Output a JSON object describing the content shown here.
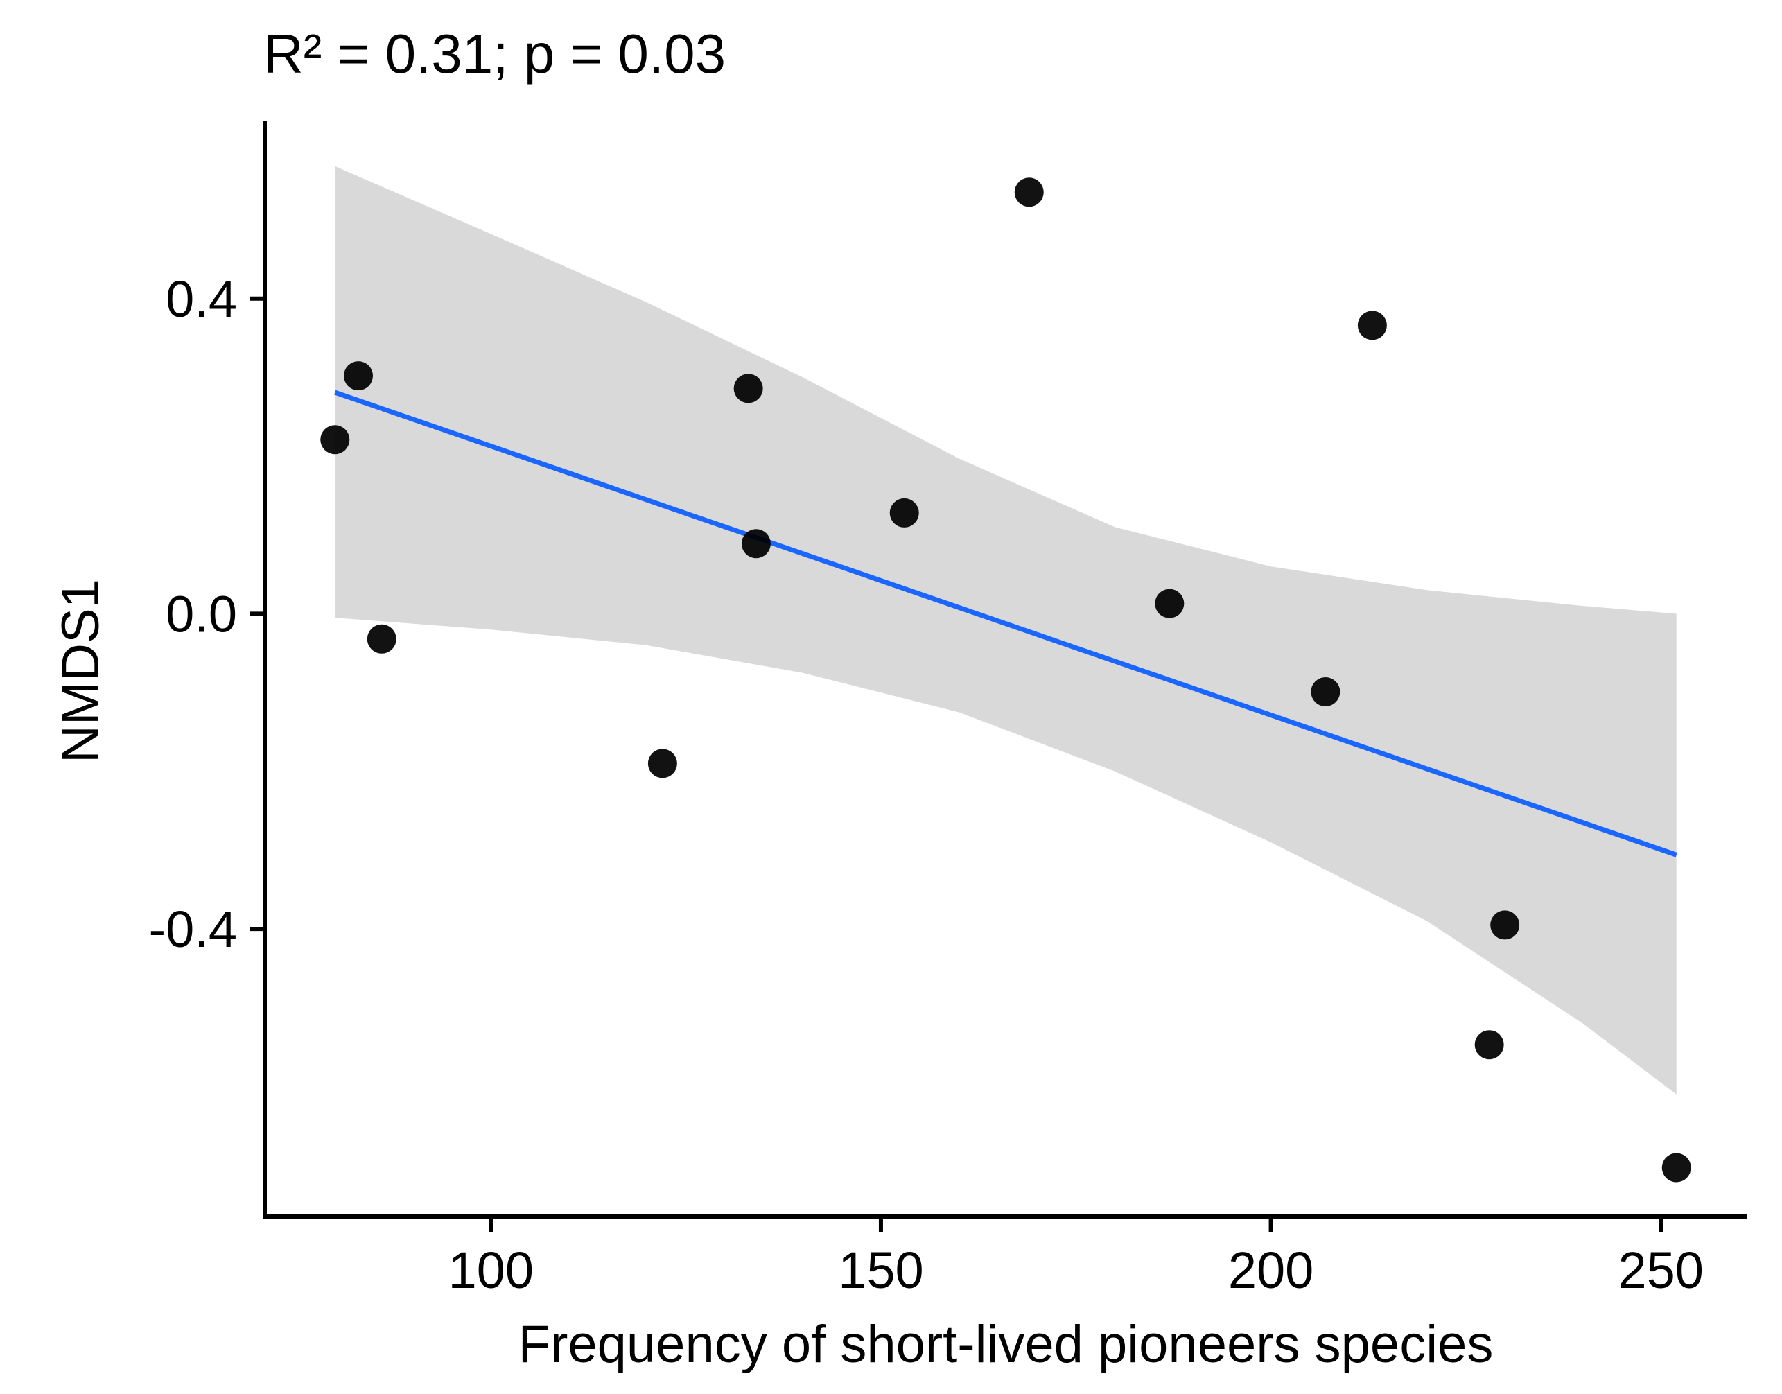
{
  "chart_data": {
    "type": "scatter",
    "title": "R² = 0.31; p = 0.03",
    "xlabel": "Frequency of short-lived pioneers species",
    "ylabel": "NMDS1",
    "xlim": [
      71,
      261
    ],
    "ylim": [
      -0.765,
      0.625
    ],
    "x_ticks": [
      100,
      150,
      200,
      250
    ],
    "x_tick_labels": [
      "100",
      "150",
      "200",
      "250"
    ],
    "y_ticks": [
      0.4,
      0.0,
      -0.4
    ],
    "y_tick_labels": [
      "0.4",
      "0.0",
      "-0.4"
    ],
    "grid": false,
    "points": [
      {
        "x": 80,
        "y": 0.221
      },
      {
        "x": 83,
        "y": 0.302
      },
      {
        "x": 86,
        "y": -0.032
      },
      {
        "x": 122,
        "y": -0.19
      },
      {
        "x": 133,
        "y": 0.286
      },
      {
        "x": 134,
        "y": 0.089
      },
      {
        "x": 153,
        "y": 0.128
      },
      {
        "x": 169,
        "y": 0.535
      },
      {
        "x": 187,
        "y": 0.013
      },
      {
        "x": 207,
        "y": -0.099
      },
      {
        "x": 213,
        "y": 0.366
      },
      {
        "x": 228,
        "y": -0.547
      },
      {
        "x": 230,
        "y": -0.395
      },
      {
        "x": 252,
        "y": -0.703
      }
    ],
    "fit_line": {
      "x": [
        80,
        252
      ],
      "y": [
        0.281,
        -0.306
      ],
      "color": "#1a66ff"
    },
    "confidence_band": {
      "x": [
        80,
        100,
        120,
        140,
        160,
        180,
        200,
        220,
        240,
        252
      ],
      "upper": [
        0.568,
        0.482,
        0.395,
        0.3,
        0.197,
        0.11,
        0.06,
        0.03,
        0.01,
        0.0
      ],
      "lower": [
        -0.005,
        -0.02,
        -0.04,
        -0.075,
        -0.125,
        -0.2,
        -0.29,
        -0.39,
        -0.52,
        -0.61
      ],
      "color": "#d9d9d9"
    },
    "point_color": "#000000"
  }
}
